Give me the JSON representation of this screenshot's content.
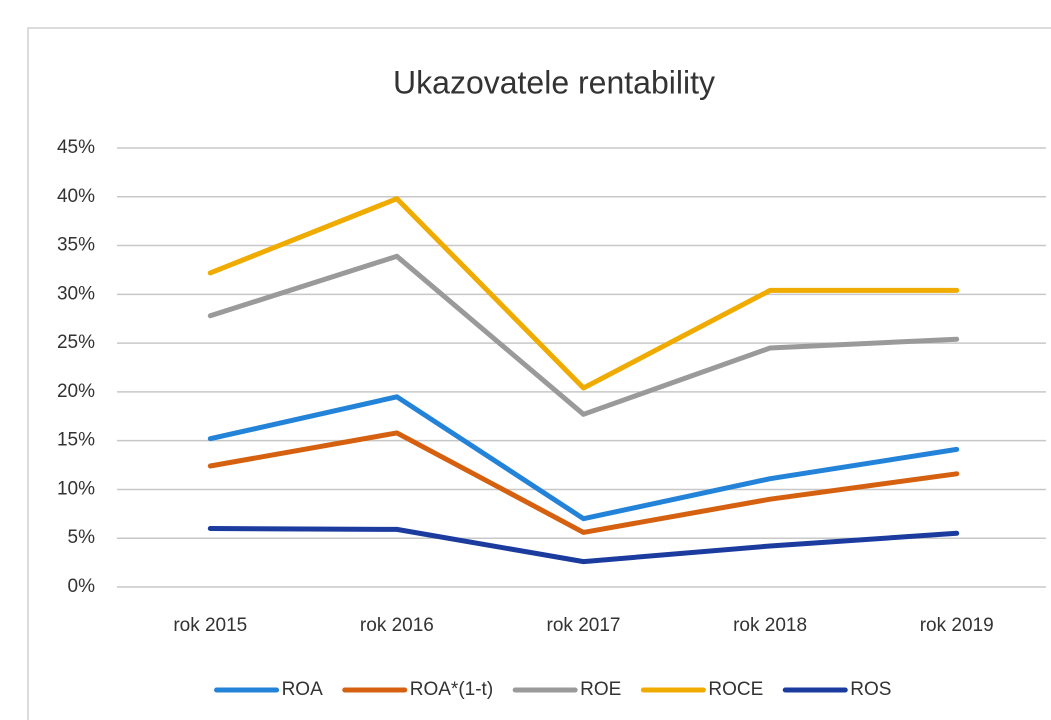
{
  "chart_data": {
    "type": "line",
    "title": "Ukazovatele rentability",
    "categories": [
      "rok 2015",
      "rok 2016",
      "rok 2017",
      "rok 2018",
      "rok 2019"
    ],
    "series": [
      {
        "name": "ROA",
        "color": "#2383d9",
        "values": [
          15.2,
          19.5,
          7.0,
          11.1,
          14.1
        ]
      },
      {
        "name": "ROA*(1-t)",
        "color": "#d5600f",
        "values": [
          12.4,
          15.8,
          5.6,
          9.0,
          11.6
        ]
      },
      {
        "name": "ROE",
        "color": "#9a9a9a",
        "values": [
          27.8,
          33.9,
          17.7,
          24.5,
          25.4
        ]
      },
      {
        "name": "ROCE",
        "color": "#f0ab00",
        "values": [
          32.2,
          39.8,
          20.4,
          30.4,
          30.4
        ]
      },
      {
        "name": "ROS",
        "color": "#1b3c9e",
        "values": [
          6.0,
          5.9,
          2.6,
          4.2,
          5.5
        ]
      }
    ],
    "ylim": [
      0,
      45
    ],
    "yticks": [
      {
        "value": 0,
        "label": "0%"
      },
      {
        "value": 5,
        "label": "5%"
      },
      {
        "value": 10,
        "label": "10%"
      },
      {
        "value": 15,
        "label": "15%"
      },
      {
        "value": 20,
        "label": "20%"
      },
      {
        "value": 25,
        "label": "25%"
      },
      {
        "value": 30,
        "label": "30%"
      },
      {
        "value": 35,
        "label": "35%"
      },
      {
        "value": 40,
        "label": "40%"
      },
      {
        "value": 45,
        "label": "45%"
      }
    ],
    "grid": true,
    "legend": "bottom"
  }
}
